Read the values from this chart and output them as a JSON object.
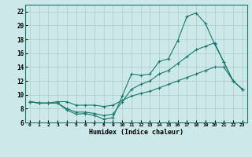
{
  "xlabel": "Humidex (Indice chaleur)",
  "background_color": "#cde8e8",
  "grid_color": "#aacccc",
  "line_color": "#1a7a6e",
  "xlim": [
    -0.5,
    23.5
  ],
  "ylim": [
    6,
    23
  ],
  "xticks": [
    0,
    1,
    2,
    3,
    4,
    5,
    6,
    7,
    8,
    9,
    10,
    11,
    12,
    13,
    14,
    15,
    16,
    17,
    18,
    19,
    20,
    21,
    22,
    23
  ],
  "yticks": [
    6,
    8,
    10,
    12,
    14,
    16,
    18,
    20,
    22
  ],
  "curve1_x": [
    0,
    1,
    2,
    3,
    4,
    5,
    6,
    7,
    8,
    9,
    10,
    11,
    12,
    13,
    14,
    15,
    16,
    17,
    18,
    19,
    20,
    21,
    22,
    23
  ],
  "curve1_y": [
    9.0,
    8.8,
    8.8,
    8.8,
    7.8,
    7.2,
    7.3,
    7.0,
    6.5,
    6.7,
    9.8,
    13.0,
    12.8,
    13.0,
    14.8,
    15.2,
    17.8,
    21.3,
    21.8,
    20.3,
    17.3,
    14.7,
    12.0,
    10.8
  ],
  "curve2_x": [
    0,
    1,
    2,
    3,
    4,
    5,
    6,
    7,
    8,
    9,
    10,
    11,
    12,
    13,
    14,
    15,
    16,
    17,
    18,
    19,
    20,
    21,
    22,
    23
  ],
  "curve2_y": [
    9.0,
    8.8,
    8.8,
    8.8,
    8.0,
    7.5,
    7.5,
    7.3,
    7.0,
    7.2,
    9.0,
    10.8,
    11.5,
    12.0,
    13.0,
    13.5,
    14.5,
    15.5,
    16.5,
    17.0,
    17.5,
    14.7,
    12.0,
    10.8
  ],
  "curve3_x": [
    0,
    1,
    2,
    3,
    4,
    5,
    6,
    7,
    8,
    9,
    10,
    11,
    12,
    13,
    14,
    15,
    16,
    17,
    18,
    19,
    20,
    21,
    22,
    23
  ],
  "curve3_y": [
    9.0,
    8.8,
    8.8,
    9.0,
    9.0,
    8.5,
    8.5,
    8.5,
    8.3,
    8.5,
    9.2,
    9.8,
    10.2,
    10.5,
    11.0,
    11.5,
    12.0,
    12.5,
    13.0,
    13.5,
    14.0,
    14.0,
    12.0,
    10.8
  ]
}
